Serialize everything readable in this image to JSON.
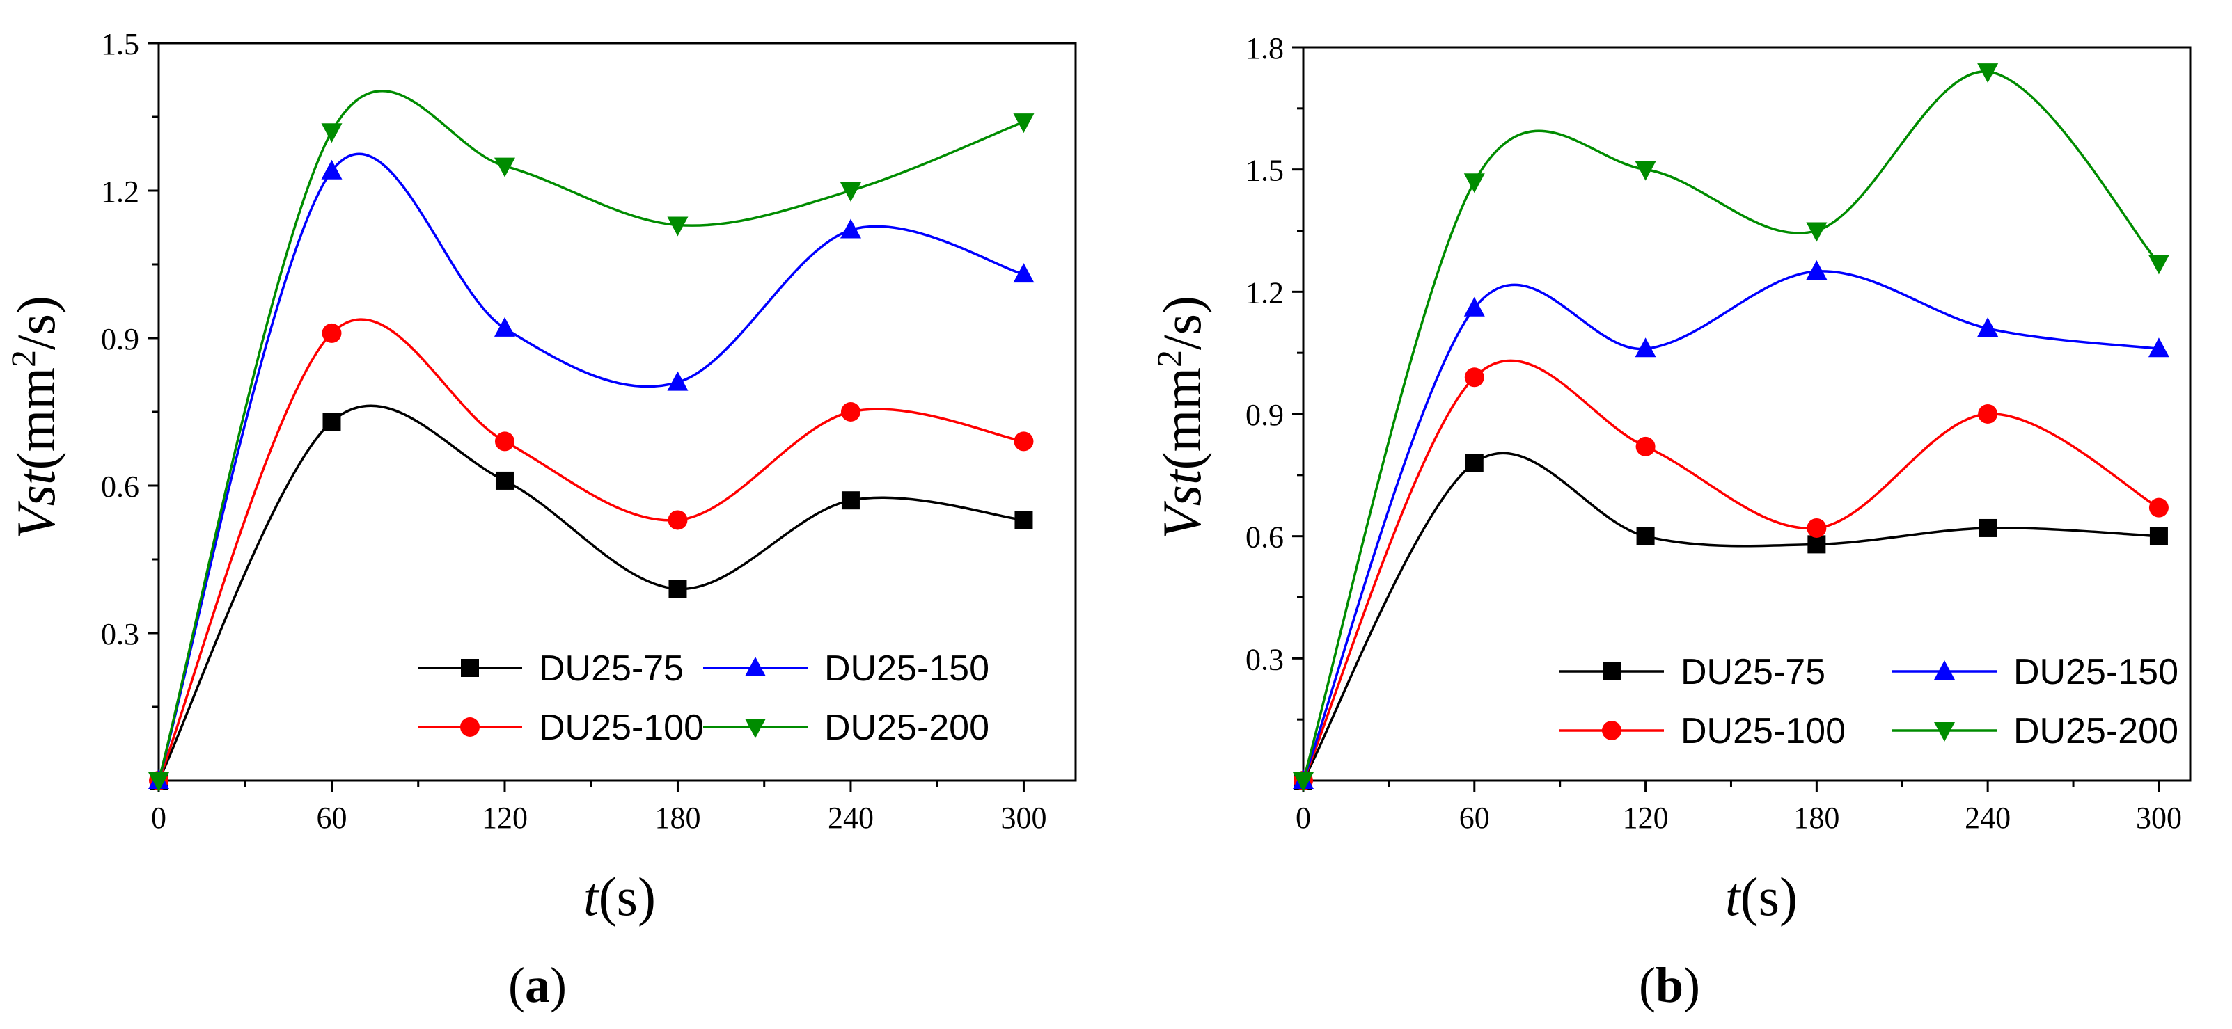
{
  "chart_data": [
    {
      "type": "line",
      "panel_label": "a",
      "ylabel_italic": "Vst",
      "ylabel_unit": "(mm",
      "ylabel_sup": "2",
      "ylabel_tail": "/s)",
      "xlabel_italic": "t",
      "xlabel_unit": "(s)",
      "x": [
        0,
        60,
        120,
        180,
        240,
        300
      ],
      "xlim": [
        0,
        318
      ],
      "ylim": [
        0,
        1.5
      ],
      "xticks": [
        0,
        60,
        120,
        180,
        240,
        300
      ],
      "yticks": [
        0.3,
        0.6,
        0.9,
        1.2,
        1.5
      ],
      "ytick_labels": [
        "0.3",
        "0.6",
        "0.9",
        "1.2",
        "1.5"
      ],
      "xtick_labels": [
        "0",
        "60",
        "120",
        "180",
        "240",
        "300"
      ],
      "legend_position": "bottom-right",
      "series": [
        {
          "name": "DU25-75",
          "color": "#000000",
          "marker": "square",
          "values": [
            0,
            0.73,
            0.61,
            0.39,
            0.57,
            0.53
          ]
        },
        {
          "name": "DU25-100",
          "color": "#ff0000",
          "marker": "circle",
          "values": [
            0,
            0.91,
            0.69,
            0.53,
            0.75,
            0.69
          ]
        },
        {
          "name": "DU25-150",
          "color": "#0000ff",
          "marker": "triangle-up",
          "values": [
            0,
            1.24,
            0.92,
            0.81,
            1.12,
            1.03
          ]
        },
        {
          "name": "DU25-200",
          "color": "#008c00",
          "marker": "triangle-down",
          "values": [
            0,
            1.32,
            1.25,
            1.13,
            1.2,
            1.34
          ]
        }
      ]
    },
    {
      "type": "line",
      "panel_label": "b",
      "ylabel_italic": "Vst",
      "ylabel_unit": "(mm",
      "ylabel_sup": "2",
      "ylabel_tail": "/s)",
      "xlabel_italic": "t",
      "xlabel_unit": "(s)",
      "x": [
        0,
        60,
        120,
        180,
        240,
        300
      ],
      "xlim": [
        0,
        311
      ],
      "ylim": [
        0,
        1.8
      ],
      "xticks": [
        0,
        60,
        120,
        180,
        240,
        300
      ],
      "yticks": [
        0.3,
        0.6,
        0.9,
        1.2,
        1.5,
        1.8
      ],
      "ytick_labels": [
        "0.3",
        "0.6",
        "0.9",
        "1.2",
        "1.5",
        "1.8"
      ],
      "xtick_labels": [
        "0",
        "60",
        "120",
        "180",
        "240",
        "300"
      ],
      "legend_position": "bottom-right",
      "series": [
        {
          "name": "DU25-75",
          "color": "#000000",
          "marker": "square",
          "values": [
            0,
            0.78,
            0.6,
            0.58,
            0.62,
            0.6
          ]
        },
        {
          "name": "DU25-100",
          "color": "#ff0000",
          "marker": "circle",
          "values": [
            0,
            0.99,
            0.82,
            0.62,
            0.9,
            0.67
          ]
        },
        {
          "name": "DU25-150",
          "color": "#0000ff",
          "marker": "triangle-up",
          "values": [
            0,
            1.16,
            1.06,
            1.25,
            1.11,
            1.06
          ]
        },
        {
          "name": "DU25-200",
          "color": "#008c00",
          "marker": "triangle-down",
          "values": [
            0,
            1.47,
            1.5,
            1.35,
            1.74,
            1.27
          ]
        }
      ]
    }
  ]
}
